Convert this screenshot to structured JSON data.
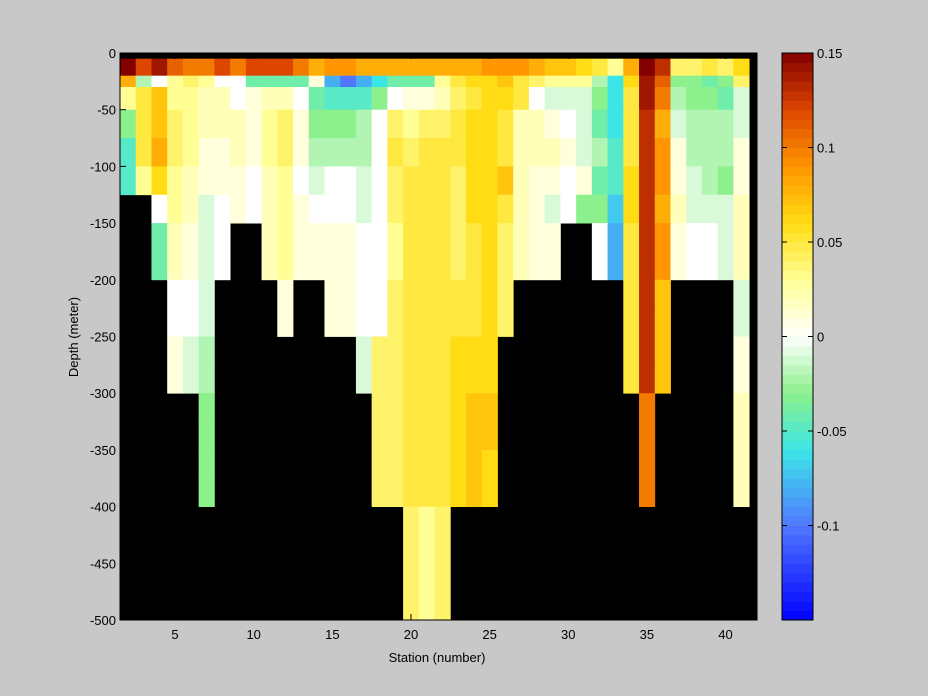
{
  "colors": {
    "background": "#c8c8c8",
    "mask": "#000000",
    "axis": "#000000"
  },
  "chart_data": {
    "type": "heatmap",
    "title": "",
    "xlabel": "Station (number)",
    "ylabel": "Depth (meter)",
    "xlim": [
      1.5,
      42.0
    ],
    "ylim": [
      -500,
      0
    ],
    "xticks": [
      5,
      10,
      15,
      20,
      25,
      30,
      35,
      40
    ],
    "yticks": [
      0,
      -50,
      -100,
      -150,
      -200,
      -250,
      -300,
      -350,
      -400,
      -450,
      -500
    ],
    "colorbar": {
      "colormap": "jet-white-diverging",
      "range": [
        -0.15,
        0.15
      ],
      "ticks": [
        0.15,
        0.1,
        0.05,
        0,
        -0.05,
        -0.1
      ],
      "tick_labels": [
        "0.15",
        "0.1",
        "0.05",
        "0",
        "-0.05",
        "-0.1"
      ]
    },
    "stations": [
      2,
      3,
      4,
      5,
      6,
      7,
      8,
      9,
      10,
      11,
      12,
      13,
      14,
      15,
      16,
      17,
      18,
      19,
      20,
      21,
      22,
      23,
      24,
      25,
      26,
      27,
      28,
      29,
      30,
      31,
      32,
      33,
      34,
      35,
      36,
      37,
      38,
      39,
      40,
      41
    ],
    "depth_rows": [
      {
        "top": -5,
        "bottom": -20
      },
      {
        "top": -20,
        "bottom": -30
      },
      {
        "top": -30,
        "bottom": -50
      },
      {
        "top": -50,
        "bottom": -75
      },
      {
        "top": -75,
        "bottom": -100
      },
      {
        "top": -100,
        "bottom": -125
      },
      {
        "top": -125,
        "bottom": -150
      },
      {
        "top": -150,
        "bottom": -175
      },
      {
        "top": -175,
        "bottom": -200
      },
      {
        "top": -200,
        "bottom": -225
      },
      {
        "top": -225,
        "bottom": -250
      },
      {
        "top": -250,
        "bottom": -275
      },
      {
        "top": -275,
        "bottom": -300
      },
      {
        "top": -300,
        "bottom": -325
      },
      {
        "top": -325,
        "bottom": -350
      },
      {
        "top": -350,
        "bottom": -375
      },
      {
        "top": -375,
        "bottom": -400
      },
      {
        "top": -400,
        "bottom": -425
      },
      {
        "top": -425,
        "bottom": -450
      },
      {
        "top": -450,
        "bottom": -475
      },
      {
        "top": -475,
        "bottom": -500
      }
    ],
    "max_depth": [
      -125,
      -125,
      -200,
      -300,
      -300,
      -400,
      -200,
      -150,
      -200,
      -200,
      -250,
      -250,
      -200,
      -250,
      -250,
      -300,
      -300,
      -400,
      -400,
      -500,
      -500,
      -500,
      -500,
      -400,
      -250,
      -200,
      -200,
      -200,
      -200,
      -150,
      -200,
      -200,
      -250,
      -400,
      -300,
      -200,
      -200,
      -200,
      -250,
      -400
    ],
    "values": [
      [
        0.15,
        0.12,
        0.14,
        0.11,
        0.1,
        0.1,
        0.12,
        0.1,
        0.12,
        0.12,
        0.12,
        0.1,
        0.08,
        0.09,
        0.09,
        0.08,
        0.08,
        0.08,
        0.08,
        0.08,
        0.08,
        0.08,
        0.08,
        0.09,
        0.09,
        0.09,
        0.08,
        0.07,
        0.07,
        0.06,
        0.05,
        0.03,
        0.08,
        0.15,
        0.13,
        0.04,
        0.04,
        0.05,
        0.04,
        0.06
      ],
      [
        0.08,
        -0.02,
        0.0,
        0.03,
        0.04,
        0.03,
        0.0,
        0.0,
        -0.04,
        -0.04,
        -0.04,
        -0.04,
        0.01,
        -0.08,
        -0.1,
        -0.08,
        -0.06,
        -0.04,
        -0.04,
        -0.04,
        0.03,
        0.05,
        0.06,
        0.06,
        0.07,
        0.05,
        0.04,
        0.03,
        0.03,
        0.03,
        -0.02,
        -0.06,
        0.06,
        0.14,
        0.11,
        -0.03,
        -0.03,
        -0.04,
        -0.03,
        0.04
      ],
      [
        0.03,
        0.05,
        0.07,
        0.03,
        0.03,
        0.02,
        0.02,
        0.0,
        0.01,
        0.02,
        0.02,
        0.0,
        -0.04,
        -0.05,
        -0.05,
        -0.05,
        -0.03,
        0.0,
        0.01,
        0.01,
        0.02,
        0.04,
        0.05,
        0.06,
        0.06,
        0.05,
        0.0,
        -0.01,
        -0.01,
        -0.01,
        -0.03,
        -0.06,
        0.05,
        0.14,
        0.1,
        -0.02,
        -0.03,
        -0.03,
        -0.04,
        -0.01
      ],
      [
        -0.03,
        0.05,
        0.07,
        0.04,
        0.03,
        0.02,
        0.02,
        0.02,
        0.01,
        0.03,
        0.04,
        0.01,
        -0.03,
        -0.03,
        -0.03,
        -0.02,
        0.0,
        0.04,
        0.03,
        0.04,
        0.04,
        0.05,
        0.06,
        0.06,
        0.05,
        0.02,
        0.02,
        0.01,
        0.0,
        -0.01,
        -0.04,
        -0.06,
        0.05,
        0.13,
        0.08,
        -0.01,
        -0.02,
        -0.02,
        -0.02,
        -0.01
      ],
      [
        -0.05,
        0.05,
        0.08,
        0.04,
        0.03,
        0.01,
        0.01,
        0.02,
        0.01,
        0.03,
        0.04,
        0.01,
        -0.02,
        -0.02,
        -0.02,
        -0.02,
        0.0,
        0.05,
        0.04,
        0.05,
        0.05,
        0.05,
        0.06,
        0.06,
        0.05,
        0.02,
        0.02,
        0.02,
        0.01,
        -0.01,
        -0.02,
        -0.05,
        0.05,
        0.13,
        0.09,
        0.01,
        -0.02,
        -0.02,
        -0.02,
        0.01
      ],
      [
        -0.05,
        0.03,
        0.06,
        0.03,
        0.02,
        0.01,
        0.01,
        0.01,
        0.0,
        0.02,
        0.03,
        0.0,
        -0.01,
        0.0,
        0.0,
        -0.01,
        0.0,
        0.04,
        0.05,
        0.05,
        0.05,
        0.04,
        0.06,
        0.06,
        0.07,
        0.02,
        0.01,
        0.01,
        0.0,
        0.01,
        -0.04,
        -0.05,
        0.06,
        0.13,
        0.09,
        0.01,
        -0.01,
        -0.02,
        -0.03,
        0.01
      ],
      [
        null,
        null,
        0.0,
        0.03,
        0.02,
        -0.01,
        0.0,
        0.01,
        0.0,
        0.02,
        0.03,
        0.01,
        0.0,
        0.0,
        0.0,
        -0.01,
        0.0,
        0.04,
        0.05,
        0.05,
        0.05,
        0.04,
        0.06,
        0.06,
        0.05,
        0.02,
        0.01,
        -0.01,
        0.0,
        -0.03,
        -0.03,
        -0.07,
        0.06,
        0.13,
        0.08,
        0.02,
        -0.01,
        -0.01,
        -0.01,
        0.02
      ],
      [
        null,
        null,
        -0.04,
        0.02,
        0.01,
        -0.01,
        0.0,
        null,
        null,
        0.02,
        0.03,
        0.01,
        0.01,
        0.01,
        0.01,
        0.0,
        0.0,
        0.03,
        0.05,
        0.05,
        0.05,
        0.04,
        0.05,
        0.06,
        0.04,
        0.02,
        0.01,
        0.01,
        null,
        null,
        0.0,
        -0.08,
        0.05,
        0.13,
        0.09,
        0.01,
        0.0,
        0.0,
        -0.01,
        0.02
      ],
      [
        null,
        null,
        -0.04,
        0.02,
        0.01,
        -0.01,
        0.0,
        null,
        null,
        0.02,
        0.03,
        0.01,
        0.01,
        0.01,
        0.01,
        0.0,
        0.0,
        0.03,
        0.05,
        0.05,
        0.05,
        0.04,
        0.05,
        0.06,
        0.04,
        0.02,
        0.01,
        0.01,
        null,
        null,
        0.0,
        -0.08,
        0.05,
        0.13,
        0.09,
        0.01,
        0.0,
        0.0,
        -0.01,
        0.02
      ],
      [
        null,
        null,
        null,
        0.0,
        0.0,
        -0.01,
        null,
        null,
        null,
        null,
        0.01,
        null,
        null,
        0.01,
        0.01,
        0.0,
        0.0,
        0.04,
        0.05,
        0.05,
        0.05,
        0.05,
        0.05,
        0.06,
        0.04,
        null,
        null,
        null,
        null,
        null,
        null,
        null,
        0.05,
        0.13,
        0.07,
        null,
        null,
        null,
        null,
        -0.01
      ],
      [
        null,
        null,
        null,
        0.0,
        0.0,
        -0.01,
        null,
        null,
        null,
        null,
        0.01,
        null,
        null,
        0.01,
        0.01,
        0.0,
        0.0,
        0.04,
        0.05,
        0.05,
        0.05,
        0.05,
        0.05,
        0.06,
        0.04,
        null,
        null,
        null,
        null,
        null,
        null,
        null,
        0.05,
        0.13,
        0.07,
        null,
        null,
        null,
        null,
        -0.01
      ],
      [
        null,
        null,
        null,
        0.01,
        -0.01,
        -0.02,
        null,
        null,
        null,
        null,
        null,
        null,
        null,
        null,
        null,
        -0.01,
        0.04,
        0.04,
        0.05,
        0.05,
        0.05,
        0.06,
        0.06,
        0.06,
        null,
        null,
        null,
        null,
        null,
        null,
        null,
        null,
        0.05,
        0.13,
        0.07,
        null,
        null,
        null,
        null,
        0.01
      ],
      [
        null,
        null,
        null,
        0.01,
        -0.01,
        -0.02,
        null,
        null,
        null,
        null,
        null,
        null,
        null,
        null,
        null,
        -0.01,
        0.04,
        0.04,
        0.05,
        0.05,
        0.05,
        0.06,
        0.06,
        0.06,
        null,
        null,
        null,
        null,
        null,
        null,
        null,
        null,
        0.05,
        0.13,
        0.07,
        null,
        null,
        null,
        null,
        0.01
      ],
      [
        null,
        null,
        null,
        null,
        null,
        -0.03,
        null,
        null,
        null,
        null,
        null,
        null,
        null,
        null,
        null,
        null,
        0.04,
        0.04,
        0.05,
        0.05,
        0.05,
        0.06,
        0.07,
        0.07,
        null,
        null,
        null,
        null,
        null,
        null,
        null,
        null,
        null,
        0.1,
        null,
        null,
        null,
        null,
        null,
        0.02
      ],
      [
        null,
        null,
        null,
        null,
        null,
        -0.03,
        null,
        null,
        null,
        null,
        null,
        null,
        null,
        null,
        null,
        null,
        0.04,
        0.04,
        0.05,
        0.05,
        0.05,
        0.06,
        0.07,
        0.07,
        null,
        null,
        null,
        null,
        null,
        null,
        null,
        null,
        null,
        0.1,
        null,
        null,
        null,
        null,
        null,
        0.02
      ],
      [
        null,
        null,
        null,
        null,
        null,
        -0.03,
        null,
        null,
        null,
        null,
        null,
        null,
        null,
        null,
        null,
        null,
        0.04,
        0.04,
        0.05,
        0.05,
        0.05,
        0.06,
        0.07,
        0.06,
        null,
        null,
        null,
        null,
        null,
        null,
        null,
        null,
        null,
        0.1,
        null,
        null,
        null,
        null,
        null,
        0.02
      ],
      [
        null,
        null,
        null,
        null,
        null,
        -0.03,
        null,
        null,
        null,
        null,
        null,
        null,
        null,
        null,
        null,
        null,
        0.04,
        0.04,
        0.05,
        0.05,
        0.05,
        0.06,
        0.07,
        0.06,
        null,
        null,
        null,
        null,
        null,
        null,
        null,
        null,
        null,
        0.1,
        null,
        null,
        null,
        null,
        null,
        0.02
      ],
      [
        null,
        null,
        null,
        null,
        null,
        null,
        null,
        null,
        null,
        null,
        null,
        null,
        null,
        null,
        null,
        null,
        null,
        null,
        0.04,
        0.03,
        0.04,
        null,
        null,
        null,
        null,
        null,
        null,
        null,
        null,
        null,
        null,
        null,
        null,
        null,
        null,
        null,
        null,
        null,
        null,
        null
      ],
      [
        null,
        null,
        null,
        null,
        null,
        null,
        null,
        null,
        null,
        null,
        null,
        null,
        null,
        null,
        null,
        null,
        null,
        null,
        0.04,
        0.03,
        0.04,
        null,
        null,
        null,
        null,
        null,
        null,
        null,
        null,
        null,
        null,
        null,
        null,
        null,
        null,
        null,
        null,
        null,
        null,
        null
      ],
      [
        null,
        null,
        null,
        null,
        null,
        null,
        null,
        null,
        null,
        null,
        null,
        null,
        null,
        null,
        null,
        null,
        null,
        null,
        0.04,
        0.03,
        0.04,
        null,
        null,
        null,
        null,
        null,
        null,
        null,
        null,
        null,
        null,
        null,
        null,
        null,
        null,
        null,
        null,
        null,
        null,
        null
      ],
      [
        null,
        null,
        null,
        null,
        null,
        null,
        null,
        null,
        null,
        null,
        null,
        null,
        null,
        null,
        null,
        null,
        null,
        null,
        0.04,
        0.03,
        0.04,
        null,
        null,
        null,
        null,
        null,
        null,
        null,
        null,
        null,
        null,
        null,
        null,
        null,
        null,
        null,
        null,
        null,
        null,
        null
      ]
    ]
  }
}
